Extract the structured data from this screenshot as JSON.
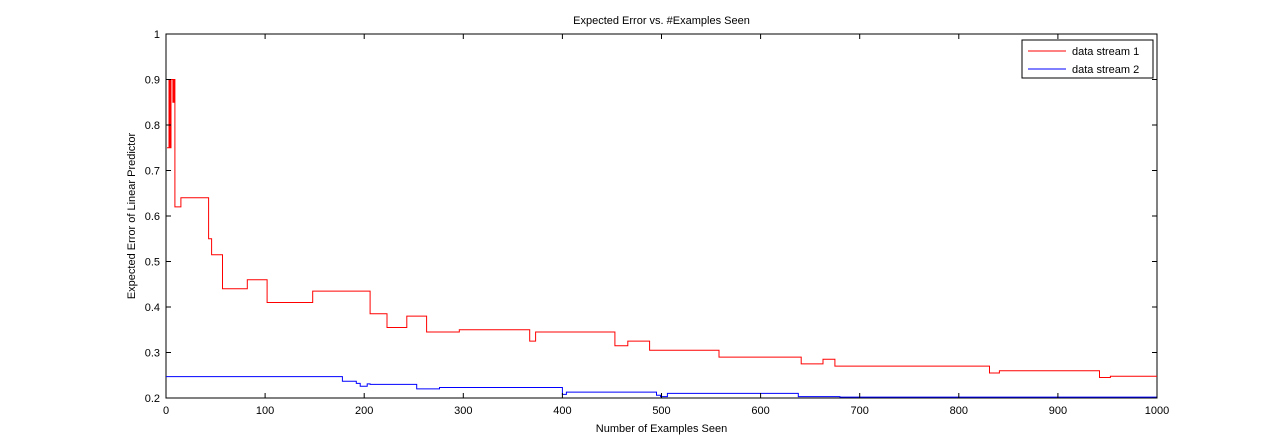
{
  "chart_data": {
    "type": "line",
    "title": "Expected Error vs. #Examples Seen",
    "xlabel": "Number of Examples Seen",
    "ylabel": "Expected Error of Linear Predictor",
    "xlim": [
      0,
      1000
    ],
    "ylim": [
      0.2,
      1
    ],
    "xticks": [
      0,
      100,
      200,
      300,
      400,
      500,
      600,
      700,
      800,
      900,
      1000
    ],
    "yticks": [
      0.2,
      0.3,
      0.4,
      0.5,
      0.6,
      0.7,
      0.8,
      0.9,
      1
    ],
    "grid": false,
    "legend_position": "top-right",
    "series": [
      {
        "name": "data stream 1",
        "color": "#ff0000",
        "step": true,
        "points": [
          [
            1,
            0.75
          ],
          [
            3,
            0.9
          ],
          [
            4,
            0.75
          ],
          [
            5,
            0.9
          ],
          [
            7,
            0.85
          ],
          [
            8,
            0.9
          ],
          [
            9,
            0.62
          ],
          [
            15,
            0.64
          ],
          [
            43,
            0.55
          ],
          [
            46,
            0.515
          ],
          [
            57,
            0.44
          ],
          [
            82,
            0.46
          ],
          [
            102,
            0.41
          ],
          [
            148,
            0.435
          ],
          [
            206,
            0.385
          ],
          [
            223,
            0.355
          ],
          [
            243,
            0.38
          ],
          [
            263,
            0.345
          ],
          [
            296,
            0.35
          ],
          [
            367,
            0.325
          ],
          [
            373,
            0.345
          ],
          [
            453,
            0.315
          ],
          [
            466,
            0.325
          ],
          [
            488,
            0.305
          ],
          [
            558,
            0.29
          ],
          [
            641,
            0.275
          ],
          [
            663,
            0.285
          ],
          [
            675,
            0.27
          ],
          [
            831,
            0.255
          ],
          [
            841,
            0.26
          ],
          [
            942,
            0.245
          ],
          [
            953,
            0.248
          ],
          [
            1000,
            0.248
          ]
        ]
      },
      {
        "name": "data stream 2",
        "color": "#0000ff",
        "step": true,
        "points": [
          [
            0,
            0.247
          ],
          [
            178,
            0.237
          ],
          [
            192,
            0.232
          ],
          [
            196,
            0.226
          ],
          [
            203,
            0.231
          ],
          [
            206,
            0.23
          ],
          [
            253,
            0.22
          ],
          [
            276,
            0.223
          ],
          [
            400,
            0.208
          ],
          [
            404,
            0.213
          ],
          [
            495,
            0.206
          ],
          [
            499,
            0.203
          ],
          [
            506,
            0.21
          ],
          [
            638,
            0.203
          ],
          [
            680,
            0.202
          ],
          [
            1000,
            0.203
          ]
        ]
      }
    ]
  }
}
